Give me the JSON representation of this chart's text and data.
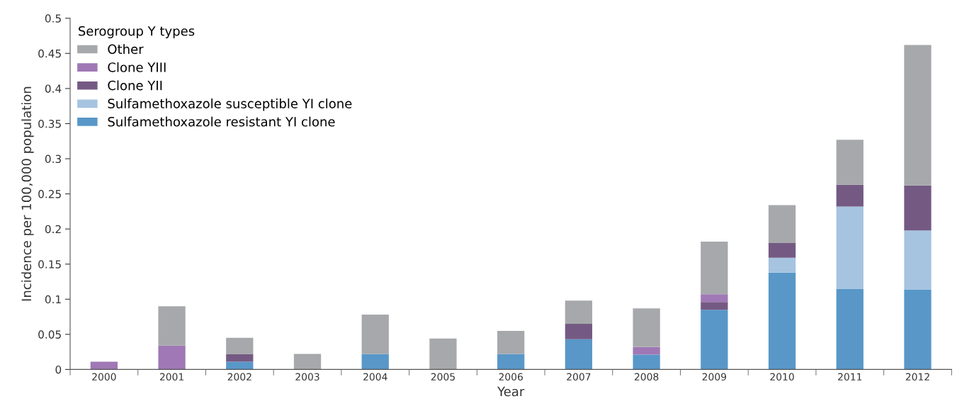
{
  "chart_data": {
    "type": "bar",
    "stacked": true,
    "xlabel": "Year",
    "ylabel": "Incidence per 100,000 population",
    "legend_title": "Serogroup Y types",
    "legend": "top left",
    "grid": false,
    "categories": [
      "2000",
      "2001",
      "2002",
      "2003",
      "2004",
      "2005",
      "2006",
      "2007",
      "2008",
      "2009",
      "2010",
      "2011",
      "2012"
    ],
    "ylim": [
      0,
      0.5
    ],
    "yticks": [
      0,
      0.05,
      0.1,
      0.15,
      0.2,
      0.25,
      0.3,
      0.35,
      0.4,
      0.45,
      0.5
    ],
    "series": [
      {
        "name": "Sulfamethoxazole resistant YI clone",
        "color": "#5897c8",
        "values": [
          0,
          0,
          0.011,
          0,
          0.022,
          0,
          0.022,
          0.043,
          0.021,
          0.085,
          0.138,
          0.115,
          0.114
        ]
      },
      {
        "name": "Sulfamethoxazole susceptible YI clone",
        "color": "#a6c3e0",
        "values": [
          0,
          0,
          0,
          0,
          0,
          0,
          0,
          0,
          0,
          0,
          0.021,
          0.117,
          0.084
        ]
      },
      {
        "name": "Clone YII",
        "color": "#745a83",
        "values": [
          0,
          0,
          0.011,
          0,
          0,
          0,
          0,
          0.022,
          0,
          0.011,
          0.021,
          0.031,
          0.064
        ]
      },
      {
        "name": "Clone YIII",
        "color": "#9f78b5",
        "values": [
          0.011,
          0.034,
          0,
          0,
          0,
          0,
          0,
          0,
          0.011,
          0.011,
          0,
          0,
          0
        ]
      },
      {
        "name": "Other",
        "color": "#a7a8ab",
        "values": [
          0,
          0.056,
          0.023,
          0.022,
          0.056,
          0.044,
          0.033,
          0.033,
          0.055,
          0.075,
          0.054,
          0.064,
          0.2
        ]
      }
    ]
  }
}
